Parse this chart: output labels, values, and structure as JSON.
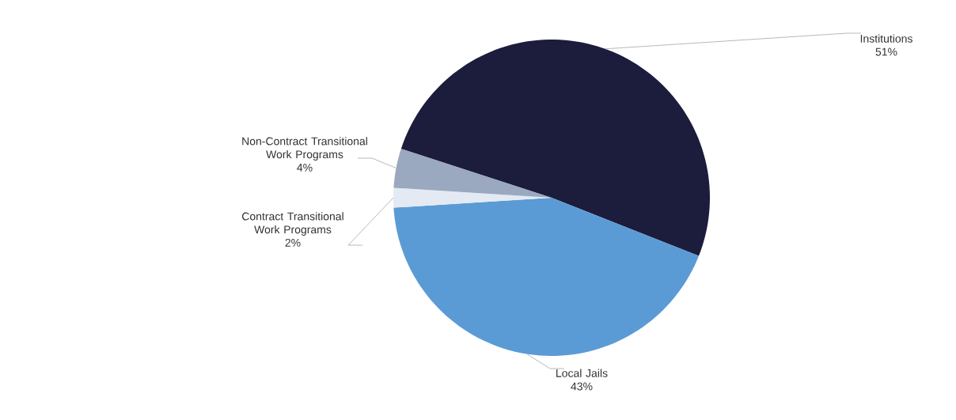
{
  "chart_data": {
    "type": "pie",
    "categories": [
      "Institutions",
      "Local Jails",
      "Contract Transitional Work Programs",
      "Non-Contract Transitional Work Programs"
    ],
    "values": [
      51,
      43,
      2,
      4
    ],
    "value_labels": [
      "51%",
      "43%",
      "2%",
      "4%"
    ],
    "colors": [
      "#1c1c3c",
      "#5b9bd5",
      "#e4eaf3",
      "#9aa8c0"
    ]
  }
}
